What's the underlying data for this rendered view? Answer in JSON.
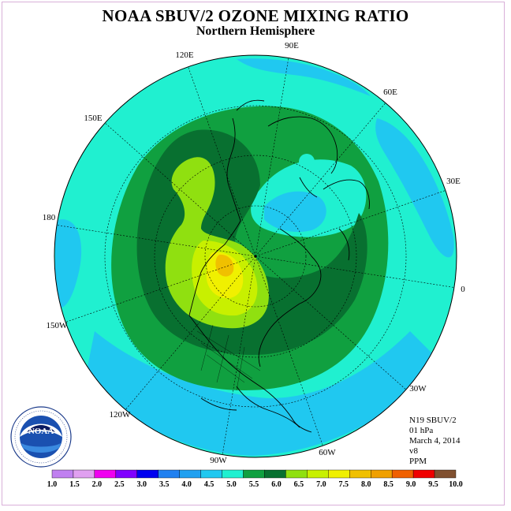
{
  "title": "NOAA SBUV/2 OZONE MIXING RATIO",
  "subtitle": "Northern Hemisphere",
  "longitude_labels": [
    {
      "id": "90e",
      "text": "90E"
    },
    {
      "id": "60e",
      "text": "60E"
    },
    {
      "id": "30e",
      "text": "30E"
    },
    {
      "id": "0",
      "text": "0"
    },
    {
      "id": "30w",
      "text": "30W"
    },
    {
      "id": "60w",
      "text": "60W"
    },
    {
      "id": "90w",
      "text": "90W"
    },
    {
      "id": "120w",
      "text": "120W"
    },
    {
      "id": "150w",
      "text": "150W"
    },
    {
      "id": "180",
      "text": "180"
    },
    {
      "id": "150e",
      "text": "150E"
    },
    {
      "id": "120e",
      "text": "120E"
    }
  ],
  "info": {
    "satellite": "N19 SBUV/2",
    "level": "01 hPa",
    "date": "March 4, 2014",
    "version": "v8",
    "units": "PPM"
  },
  "logo_text": "NOAA",
  "logo_ring_text": "NATIONAL OCEANIC AND ATMOSPHERIC ADMINISTRATION · U.S. DEPARTMENT OF COMMERCE",
  "colorbar": {
    "labels": [
      "1.0",
      "1.5",
      "2.0",
      "2.5",
      "3.0",
      "3.5",
      "4.0",
      "4.5",
      "5.0",
      "5.5",
      "6.0",
      "6.5",
      "7.0",
      "7.5",
      "8.0",
      "8.5",
      "9.0",
      "9.5",
      "10.0"
    ],
    "colors": [
      "#c080f0",
      "#e0a0f0",
      "#f000f0",
      "#8000ff",
      "#0000f0",
      "#2080f0",
      "#20a0f0",
      "#20c8f0",
      "#20f0d0",
      "#10a040",
      "#087030",
      "#90e010",
      "#c8f000",
      "#f0f000",
      "#f0c000",
      "#f0a000",
      "#f06000",
      "#f00000",
      "#805030"
    ]
  },
  "map_colors": {
    "cyan": "#20f0d0",
    "light_blue": "#20c8f0",
    "blue": "#20a0f0",
    "green": "#10a040",
    "dark_green": "#087030",
    "lime": "#90e010",
    "yellow_green": "#c8f000",
    "yellow": "#f0f000",
    "orange": "#f0c000"
  }
}
